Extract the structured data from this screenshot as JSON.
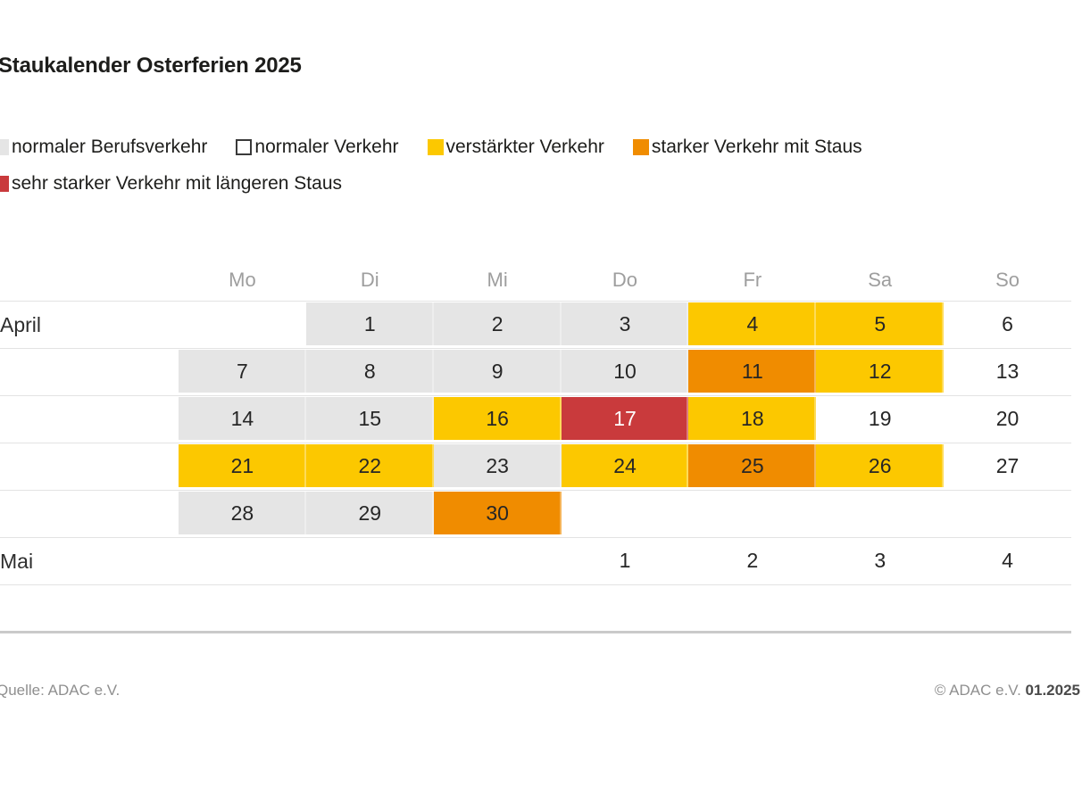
{
  "title": "Staukalender Osterferien 2025",
  "chart_data": {
    "type": "heatmap",
    "title": "Staukalender Osterferien 2025",
    "columns": [
      "Mo",
      "Di",
      "Mi",
      "Do",
      "Fr",
      "Sa",
      "So"
    ],
    "levels": {
      "berufsverkehr": {
        "label": "normaler Berufsverkehr",
        "color": "#e5e5e5"
      },
      "normal": {
        "label": "normaler Verkehr",
        "color": "#ffffff"
      },
      "verstaerkt": {
        "label": "verstärkter Verkehr",
        "color": "#fcc800"
      },
      "stark": {
        "label": "starker Verkehr mit Staus",
        "color": "#f08c00"
      },
      "sehr_stark": {
        "label": "sehr starker Verkehr mit längeren Staus",
        "color": "#c93a3c"
      }
    },
    "rows": [
      {
        "month": "April",
        "cells": [
          {
            "day": "",
            "level": "none"
          },
          {
            "day": "1",
            "level": "berufsverkehr"
          },
          {
            "day": "2",
            "level": "berufsverkehr"
          },
          {
            "day": "3",
            "level": "berufsverkehr"
          },
          {
            "day": "4",
            "level": "verstaerkt"
          },
          {
            "day": "5",
            "level": "verstaerkt"
          },
          {
            "day": "6",
            "level": "normal"
          }
        ]
      },
      {
        "month": "",
        "cells": [
          {
            "day": "7",
            "level": "berufsverkehr"
          },
          {
            "day": "8",
            "level": "berufsverkehr"
          },
          {
            "day": "9",
            "level": "berufsverkehr"
          },
          {
            "day": "10",
            "level": "berufsverkehr"
          },
          {
            "day": "11",
            "level": "stark"
          },
          {
            "day": "12",
            "level": "verstaerkt"
          },
          {
            "day": "13",
            "level": "normal"
          }
        ]
      },
      {
        "month": "",
        "cells": [
          {
            "day": "14",
            "level": "berufsverkehr"
          },
          {
            "day": "15",
            "level": "berufsverkehr"
          },
          {
            "day": "16",
            "level": "verstaerkt"
          },
          {
            "day": "17",
            "level": "sehr_stark"
          },
          {
            "day": "18",
            "level": "verstaerkt"
          },
          {
            "day": "19",
            "level": "normal"
          },
          {
            "day": "20",
            "level": "normal"
          }
        ]
      },
      {
        "month": "",
        "cells": [
          {
            "day": "21",
            "level": "verstaerkt"
          },
          {
            "day": "22",
            "level": "verstaerkt"
          },
          {
            "day": "23",
            "level": "berufsverkehr"
          },
          {
            "day": "24",
            "level": "verstaerkt"
          },
          {
            "day": "25",
            "level": "stark"
          },
          {
            "day": "26",
            "level": "verstaerkt"
          },
          {
            "day": "27",
            "level": "normal"
          }
        ]
      },
      {
        "month": "",
        "cells": [
          {
            "day": "28",
            "level": "berufsverkehr"
          },
          {
            "day": "29",
            "level": "berufsverkehr"
          },
          {
            "day": "30",
            "level": "stark"
          },
          {
            "day": "",
            "level": "none"
          },
          {
            "day": "",
            "level": "none"
          },
          {
            "day": "",
            "level": "none"
          },
          {
            "day": "",
            "level": "none"
          }
        ]
      },
      {
        "month": "Mai",
        "cells": [
          {
            "day": "",
            "level": "none"
          },
          {
            "day": "",
            "level": "none"
          },
          {
            "day": "",
            "level": "none"
          },
          {
            "day": "1",
            "level": "normal"
          },
          {
            "day": "2",
            "level": "normal"
          },
          {
            "day": "3",
            "level": "normal"
          },
          {
            "day": "4",
            "level": "normal"
          }
        ]
      }
    ]
  },
  "legend": {
    "rows": [
      [
        "berufsverkehr",
        "normal",
        "verstaerkt",
        "stark"
      ],
      [
        "sehr_stark"
      ]
    ]
  },
  "footer": {
    "source": "Quelle: ADAC e.V.",
    "copyright": "© ADAC e.V.",
    "date": "01.2025"
  }
}
